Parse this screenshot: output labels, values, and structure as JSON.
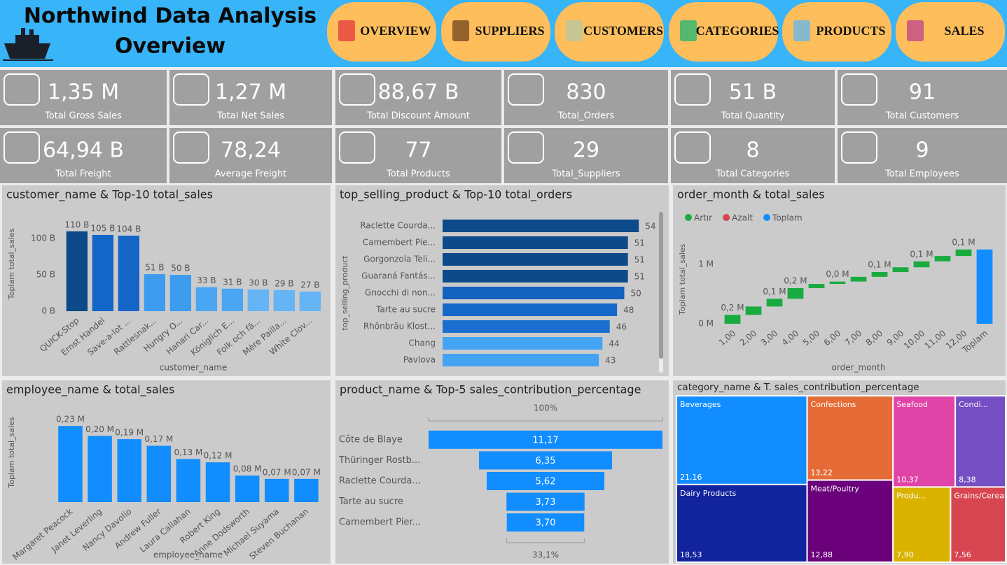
{
  "header": {
    "title": "Northwind Data Analysis",
    "subtitle": "Overview",
    "nav": [
      "OVERVIEW",
      "SUPPLIERS",
      "CUSTOMERS",
      "CATEGORIES",
      "PRODUCTS",
      "SALES"
    ]
  },
  "kpis": [
    {
      "value": "1,35 M",
      "label": "Total Gross Sales"
    },
    {
      "value": "1,27 M",
      "label": "Total Net Sales"
    },
    {
      "value": "88,67 B",
      "label": "Total Discount Amount"
    },
    {
      "value": "830",
      "label": "Total_Orders"
    },
    {
      "value": "51 B",
      "label": "Total Quantity"
    },
    {
      "value": "91",
      "label": "Total Customers"
    },
    {
      "value": "64,94 B",
      "label": "Total Freight"
    },
    {
      "value": "78,24",
      "label": "Average Freight"
    },
    {
      "value": "77",
      "label": "Total Products"
    },
    {
      "value": "29",
      "label": "Total_Suppliers"
    },
    {
      "value": "8",
      "label": "Total Categories"
    },
    {
      "value": "9",
      "label": "Total Employees"
    }
  ],
  "chart_data": [
    {
      "type": "bar",
      "title": "customer_name & Top-10 total_sales",
      "x_label": "customer_name",
      "y_label": "Toplam total_sales",
      "categories": [
        "QUICK-Stop",
        "Ernst Handel",
        "Save-a-lot ...",
        "Rattlesnak...",
        "Hungry O...",
        "Hanari Car...",
        "Königlich E...",
        "Folk och fä...",
        "Mère Pailla...",
        "White Clov..."
      ],
      "values": [
        110,
        105,
        104,
        51,
        50,
        33,
        31,
        30,
        29,
        27
      ],
      "value_labels": [
        "110 B",
        "105 B",
        "104 B",
        "51 B",
        "50 B",
        "33 B",
        "31 B",
        "30 B",
        "29 B",
        "27 B"
      ],
      "colors": [
        "#0d4a8a",
        "#1366c8",
        "#1366c8",
        "#3d9cf0",
        "#3d9cf0",
        "#4aa6f2",
        "#4aa6f2",
        "#64b4f6",
        "#64b4f6",
        "#64b4f6"
      ],
      "ylim": [
        0,
        130
      ],
      "yticks": [
        {
          "value": 0,
          "label": "0 B"
        },
        {
          "value": 50,
          "label": "50 B"
        },
        {
          "value": 100,
          "label": "100 B"
        }
      ]
    },
    {
      "type": "barh",
      "title": "top_selling_product & Top-10 total_orders",
      "y_label": "top_selling_product",
      "categories": [
        "Raclette Courda...",
        "Camembert Pie...",
        "Gorgonzola Teli...",
        "Guaraná Fantás...",
        "Gnocchi di non...",
        "Tarte au sucre",
        "Rhönbräu Klost...",
        "Chang",
        "Pavlova"
      ],
      "values": [
        54,
        51,
        51,
        51,
        50,
        48,
        46,
        44,
        43
      ],
      "colors": [
        "#0c4a8a",
        "#0c4a8a",
        "#0c4a8a",
        "#0c4a8a",
        "#1262bf",
        "#1668c8",
        "#1a6fd0",
        "#44a3f3",
        "#44a3f3"
      ],
      "xlim": [
        0,
        58
      ]
    },
    {
      "type": "waterfall",
      "title": "order_month & total_sales",
      "x_label": "order_month",
      "y_label": "Toplam total_sales",
      "legend": [
        {
          "name": "Artır",
          "color": "#1aab40"
        },
        {
          "name": "Azalt",
          "color": "#d64550"
        },
        {
          "name": "Toplam",
          "color": "#118dff"
        }
      ],
      "categories": [
        "1,00",
        "2,00",
        "3,00",
        "4,00",
        "5,00",
        "6,00",
        "7,00",
        "8,00",
        "9,00",
        "10,00",
        "11,00",
        "12,00"
      ],
      "values": [
        0.15,
        0.14,
        0.13,
        0.18,
        0.07,
        0.04,
        0.08,
        0.08,
        0.08,
        0.1,
        0.09,
        0.11
      ],
      "value_labels": [
        "0,2 M",
        null,
        "0,1 M",
        "0,2 M",
        null,
        "0,0 M",
        null,
        "0,1 M",
        null,
        "0,1 M",
        null,
        "0,1 M"
      ],
      "total_label": "Toplam",
      "total": 1.25,
      "ylim": [
        0,
        1.5
      ],
      "yticks": [
        {
          "value": 0,
          "label": "0 M"
        },
        {
          "value": 1,
          "label": "1 M"
        }
      ]
    },
    {
      "type": "bar",
      "title": "employee_name & total_sales",
      "x_label": "employee_name",
      "y_label": "Toplam total_sales",
      "categories": [
        "Margaret Peacock",
        "Janet Leverling",
        "Nancy Davolio",
        "Andrew Fuller",
        "Laura Callahan",
        "Robert King",
        "Anne Dodsworth",
        "Michael Suyama",
        "Steven Buchanan"
      ],
      "values": [
        0.23,
        0.2,
        0.19,
        0.17,
        0.13,
        0.12,
        0.08,
        0.07,
        0.07
      ],
      "value_labels": [
        "0,23 M",
        "0,20 M",
        "0,19 M",
        "0,17 M",
        "0,13 M",
        "0,12 M",
        "0,08 M",
        "0,07 M",
        "0,07 M"
      ],
      "colors": [
        "#118dff",
        "#118dff",
        "#118dff",
        "#118dff",
        "#118dff",
        "#118dff",
        "#118dff",
        "#118dff",
        "#118dff"
      ],
      "ylim": [
        0,
        0.3
      ]
    },
    {
      "type": "funnel",
      "title": "product_name & Top-5 sales_contribution_percentage",
      "top_label": "100%",
      "bottom_label": "33,1%",
      "color": "#118dff",
      "categories": [
        "Côte de Blaye",
        "Thüringer Rostb...",
        "Raclette Courda...",
        "Tarte au sucre",
        "Camembert Pier..."
      ],
      "values": [
        11.17,
        6.35,
        5.62,
        3.73,
        3.7
      ],
      "value_labels": [
        "11,17",
        "6,35",
        "5,62",
        "3,73",
        "3,70"
      ]
    },
    {
      "type": "treemap",
      "title": "category_name & T. sales_contribution_percentage",
      "categories": [
        "Beverages",
        "Dairy Products",
        "Confections",
        "Meat/Poultry",
        "Seafood",
        "Condi...",
        "Produ...",
        "Grains/Cereals"
      ],
      "values": [
        21.16,
        18.53,
        13.22,
        12.88,
        10.37,
        8.38,
        7.9,
        7.56
      ],
      "value_labels": [
        "21,16",
        "18,53",
        "13,22",
        "12,88",
        "10,37",
        "8,38",
        "7,90",
        "7,56"
      ],
      "colors": [
        "#118dff",
        "#12239e",
        "#e66c37",
        "#6b007b",
        "#e044a7",
        "#744ec2",
        "#d9b300",
        "#d64550"
      ]
    }
  ]
}
